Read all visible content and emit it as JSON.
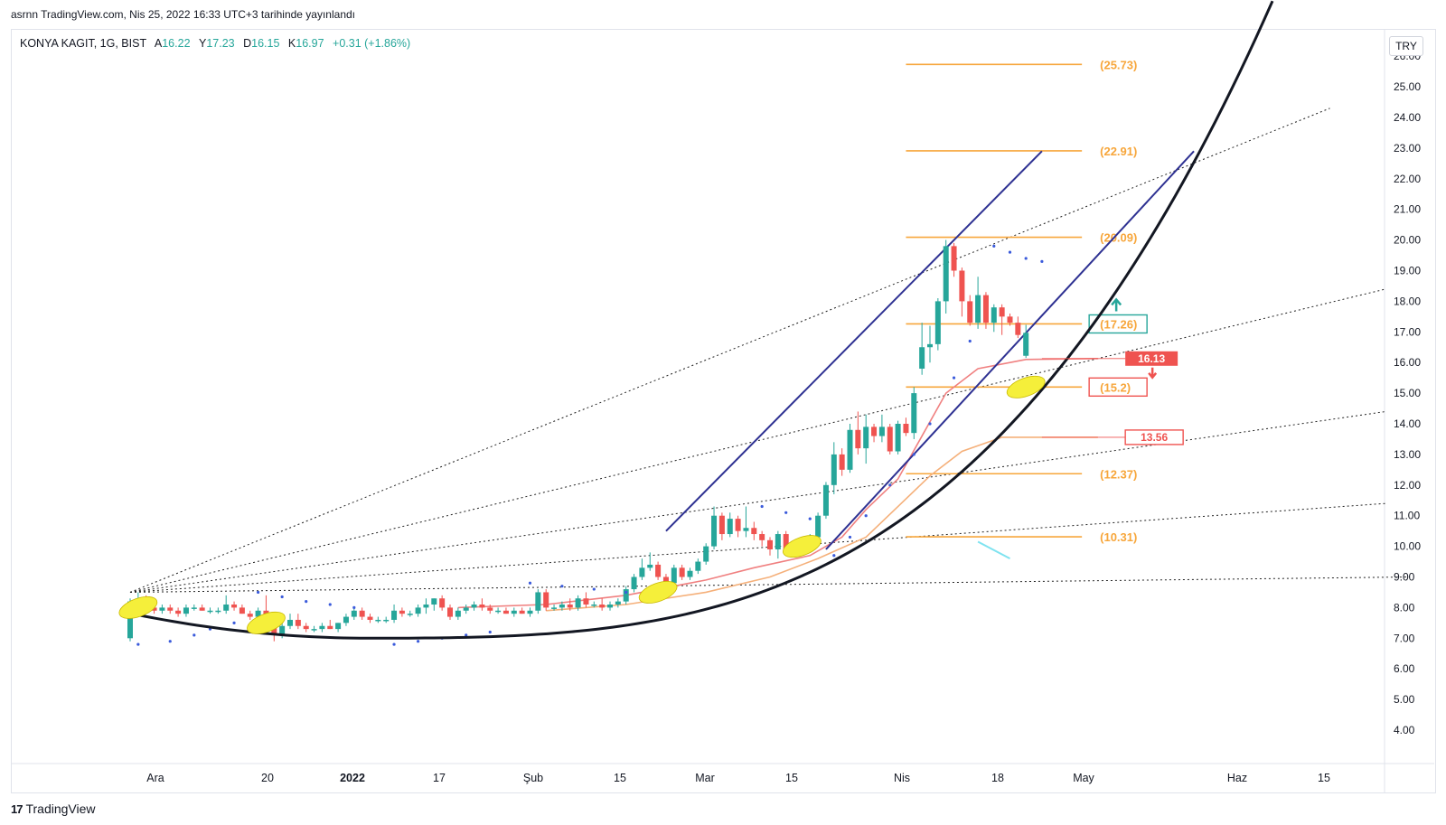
{
  "header": {
    "published_text": "asrnn TradingView.com, Nis 25, 2022 16:33 UTC+3 tarihinde yayınlandı"
  },
  "legend": {
    "symbol": "KONYA KAGIT, 1G, BIST",
    "open_label": "A",
    "open": "16.22",
    "high_label": "Y",
    "high": "17.23",
    "low_label": "D",
    "low": "16.15",
    "close_label": "K",
    "close": "16.97",
    "change": "+0.31 (+1.86%)"
  },
  "currency": "TRY",
  "brand": {
    "logo_icon": "tradingview-logo-icon",
    "text": "TradingView"
  },
  "colors": {
    "up": "#26a69a",
    "down": "#ef5350",
    "level": "#f7a63b",
    "channel": "#2e3192",
    "curve": "#131722",
    "psar": "#3b5bdb",
    "ma_fast": "#f08080",
    "ma_slow": "#f5b07a",
    "highlight": "#f5ef3a"
  },
  "chart_data": {
    "type": "candlestick",
    "ylim": [
      3.6,
      26.2
    ],
    "y_ticks": [
      "4.00",
      "5.00",
      "6.00",
      "7.00",
      "8.00",
      "9.00",
      "10.00",
      "11.00",
      "12.00",
      "13.00",
      "14.00",
      "15.00",
      "16.00",
      "17.00",
      "18.00",
      "19.00",
      "20.00",
      "21.00",
      "22.00",
      "23.00",
      "24.00",
      "25.00",
      "26.00"
    ],
    "x_ticks": [
      "Ara",
      "20",
      "2022",
      "17",
      "Şub",
      "15",
      "Mar",
      "15",
      "Nis",
      "18",
      "May",
      "Haz",
      "15"
    ],
    "fib_levels": [
      "(25.73)",
      "(22.91)",
      "(20.09)",
      "(17.26)",
      "(15.2)",
      "(12.37)",
      "(10.31)"
    ],
    "fib_values": [
      25.73,
      22.91,
      20.09,
      17.26,
      15.2,
      12.37,
      10.31
    ],
    "price_tags": [
      {
        "label": "16.13",
        "value": 16.13,
        "style": "filled"
      },
      {
        "label": "13.56",
        "value": 13.56,
        "style": "outline"
      }
    ],
    "candles": [
      [
        7.0,
        8.3,
        6.9,
        8.2
      ],
      [
        8.2,
        8.5,
        8.0,
        8.3
      ],
      [
        8.3,
        8.4,
        7.9,
        8.0
      ],
      [
        8.0,
        8.2,
        7.8,
        7.9
      ],
      [
        7.9,
        8.1,
        7.8,
        8.0
      ],
      [
        8.0,
        8.1,
        7.8,
        7.9
      ],
      [
        7.9,
        8.0,
        7.7,
        7.8
      ],
      [
        7.8,
        8.1,
        7.7,
        8.0
      ],
      [
        8.0,
        8.1,
        7.9,
        8.0
      ],
      [
        8.0,
        8.1,
        7.9,
        7.9
      ],
      [
        7.9,
        8.0,
        7.8,
        7.9
      ],
      [
        7.9,
        8.0,
        7.8,
        7.9
      ],
      [
        7.9,
        8.4,
        7.8,
        8.1
      ],
      [
        8.1,
        8.2,
        7.9,
        8.0
      ],
      [
        8.0,
        8.1,
        7.8,
        7.8
      ],
      [
        7.8,
        7.9,
        7.6,
        7.7
      ],
      [
        7.7,
        8.0,
        7.6,
        7.9
      ],
      [
        7.9,
        8.4,
        7.2,
        7.4
      ],
      [
        7.4,
        7.6,
        6.9,
        7.1
      ],
      [
        7.1,
        7.5,
        7.0,
        7.4
      ],
      [
        7.4,
        7.8,
        7.3,
        7.6
      ],
      [
        7.6,
        7.8,
        7.3,
        7.4
      ],
      [
        7.4,
        7.5,
        7.2,
        7.3
      ],
      [
        7.3,
        7.4,
        7.2,
        7.3
      ],
      [
        7.3,
        7.5,
        7.2,
        7.4
      ],
      [
        7.4,
        7.6,
        7.3,
        7.3
      ],
      [
        7.3,
        7.5,
        7.2,
        7.5
      ],
      [
        7.5,
        7.8,
        7.4,
        7.7
      ],
      [
        7.7,
        8.0,
        7.6,
        7.9
      ],
      [
        7.9,
        8.0,
        7.6,
        7.7
      ],
      [
        7.7,
        7.8,
        7.5,
        7.6
      ],
      [
        7.6,
        7.7,
        7.5,
        7.6
      ],
      [
        7.6,
        7.7,
        7.5,
        7.6
      ],
      [
        7.6,
        8.1,
        7.5,
        7.9
      ],
      [
        7.9,
        8.0,
        7.7,
        7.8
      ],
      [
        7.8,
        7.9,
        7.7,
        7.8
      ],
      [
        7.8,
        8.1,
        7.7,
        8.0
      ],
      [
        8.0,
        8.3,
        7.8,
        8.1
      ],
      [
        8.1,
        8.3,
        7.9,
        8.3
      ],
      [
        8.3,
        8.4,
        7.9,
        8.0
      ],
      [
        8.0,
        8.1,
        7.6,
        7.7
      ],
      [
        7.7,
        8.0,
        7.6,
        7.9
      ],
      [
        7.9,
        8.1,
        7.8,
        8.0
      ],
      [
        8.0,
        8.2,
        7.9,
        8.1
      ],
      [
        8.1,
        8.3,
        7.9,
        8.0
      ],
      [
        8.0,
        8.1,
        7.8,
        7.9
      ],
      [
        7.9,
        8.0,
        7.8,
        7.9
      ],
      [
        7.9,
        8.0,
        7.8,
        7.8
      ],
      [
        7.8,
        8.0,
        7.7,
        7.9
      ],
      [
        7.9,
        8.0,
        7.8,
        7.8
      ],
      [
        7.8,
        8.0,
        7.7,
        7.9
      ],
      [
        7.9,
        8.6,
        7.8,
        8.5
      ],
      [
        8.5,
        8.6,
        7.9,
        8.0
      ],
      [
        8.0,
        8.1,
        7.9,
        8.0
      ],
      [
        8.0,
        8.2,
        7.9,
        8.1
      ],
      [
        8.1,
        8.3,
        7.9,
        8.0
      ],
      [
        8.0,
        8.4,
        7.9,
        8.3
      ],
      [
        8.3,
        8.5,
        8.0,
        8.1
      ],
      [
        8.1,
        8.2,
        8.0,
        8.1
      ],
      [
        8.1,
        8.3,
        7.9,
        8.0
      ],
      [
        8.0,
        8.2,
        7.9,
        8.1
      ],
      [
        8.1,
        8.3,
        8.0,
        8.2
      ],
      [
        8.2,
        8.7,
        8.1,
        8.6
      ],
      [
        8.6,
        9.1,
        8.5,
        9.0
      ],
      [
        9.0,
        9.6,
        8.9,
        9.3
      ],
      [
        9.3,
        9.8,
        9.2,
        9.4
      ],
      [
        9.4,
        9.5,
        8.9,
        9.0
      ],
      [
        9.0,
        9.1,
        8.7,
        8.8
      ],
      [
        8.8,
        9.4,
        8.6,
        9.3
      ],
      [
        9.3,
        9.4,
        8.9,
        9.0
      ],
      [
        9.0,
        9.3,
        8.9,
        9.2
      ],
      [
        9.2,
        9.6,
        9.1,
        9.5
      ],
      [
        9.5,
        10.1,
        9.4,
        10.0
      ],
      [
        10.0,
        11.3,
        9.9,
        11.0
      ],
      [
        11.0,
        11.1,
        10.2,
        10.4
      ],
      [
        10.4,
        11.1,
        10.3,
        10.9
      ],
      [
        10.9,
        11.0,
        10.3,
        10.5
      ],
      [
        10.5,
        11.3,
        10.3,
        10.6
      ],
      [
        10.6,
        10.8,
        10.2,
        10.4
      ],
      [
        10.4,
        10.5,
        10.0,
        10.2
      ],
      [
        10.2,
        10.3,
        9.7,
        9.9
      ],
      [
        9.9,
        10.5,
        9.6,
        10.4
      ],
      [
        10.4,
        10.5,
        9.7,
        9.8
      ],
      [
        9.8,
        10.2,
        9.7,
        10.1
      ],
      [
        10.1,
        10.2,
        9.9,
        10.0
      ],
      [
        10.0,
        10.4,
        9.9,
        10.3
      ],
      [
        10.3,
        11.1,
        10.1,
        11.0
      ],
      [
        11.0,
        12.1,
        10.9,
        12.0
      ],
      [
        12.0,
        13.4,
        11.7,
        13.0
      ],
      [
        13.0,
        13.2,
        12.3,
        12.5
      ],
      [
        12.5,
        14.0,
        12.4,
        13.8
      ],
      [
        13.8,
        14.4,
        13.0,
        13.2
      ],
      [
        13.2,
        14.3,
        12.7,
        13.9
      ],
      [
        13.9,
        14.0,
        13.4,
        13.6
      ],
      [
        13.6,
        14.3,
        13.4,
        13.9
      ],
      [
        13.9,
        14.0,
        13.0,
        13.1
      ],
      [
        13.1,
        14.1,
        13.0,
        14.0
      ],
      [
        14.0,
        14.2,
        13.6,
        13.7
      ],
      [
        13.7,
        15.2,
        13.5,
        15.0
      ],
      [
        15.8,
        17.3,
        15.6,
        16.5
      ],
      [
        16.5,
        17.2,
        16.0,
        16.6
      ],
      [
        16.6,
        18.1,
        16.4,
        18.0
      ],
      [
        18.0,
        20.0,
        17.6,
        19.8
      ],
      [
        19.8,
        19.9,
        18.8,
        19.0
      ],
      [
        19.0,
        19.1,
        17.5,
        18.0
      ],
      [
        18.0,
        18.2,
        17.2,
        17.3
      ],
      [
        17.3,
        18.8,
        17.1,
        18.2
      ],
      [
        18.2,
        18.3,
        17.1,
        17.3
      ],
      [
        17.3,
        17.9,
        17.0,
        17.8
      ],
      [
        17.8,
        17.9,
        16.9,
        17.5
      ],
      [
        17.5,
        17.6,
        17.2,
        17.3
      ],
      [
        17.3,
        17.5,
        16.8,
        16.9
      ],
      [
        16.22,
        17.23,
        16.15,
        16.97
      ]
    ],
    "ma_fast": [
      [
        8.0,
        41
      ],
      [
        8.1,
        52
      ],
      [
        8.4,
        62
      ],
      [
        8.9,
        72
      ],
      [
        9.3,
        78
      ],
      [
        9.7,
        85
      ],
      [
        10.3,
        89
      ],
      [
        11.2,
        92
      ],
      [
        12.2,
        96
      ],
      [
        13.6,
        99
      ],
      [
        15.0,
        102
      ],
      [
        15.8,
        106
      ],
      [
        16.1,
        112
      ],
      [
        16.13,
        121
      ]
    ],
    "ma_slow": [
      [
        7.9,
        52
      ],
      [
        8.1,
        62
      ],
      [
        8.5,
        72
      ],
      [
        9.0,
        80
      ],
      [
        9.6,
        86
      ],
      [
        10.3,
        92
      ],
      [
        11.3,
        96
      ],
      [
        12.3,
        100
      ],
      [
        13.1,
        104
      ],
      [
        13.56,
        109
      ],
      [
        13.56,
        121
      ]
    ],
    "psar_marks": [
      [
        6.8,
        1
      ],
      [
        6.9,
        5
      ],
      [
        7.1,
        8
      ],
      [
        7.3,
        10
      ],
      [
        7.5,
        13
      ],
      [
        8.5,
        16
      ],
      [
        8.35,
        19
      ],
      [
        8.2,
        22
      ],
      [
        8.1,
        25
      ],
      [
        8.0,
        28
      ],
      [
        6.8,
        33
      ],
      [
        6.9,
        36
      ],
      [
        7.0,
        39
      ],
      [
        7.1,
        42
      ],
      [
        7.2,
        45
      ],
      [
        8.8,
        50
      ],
      [
        8.7,
        54
      ],
      [
        8.6,
        58
      ],
      [
        8.5,
        62
      ],
      [
        8.4,
        66
      ],
      [
        11.3,
        79
      ],
      [
        11.1,
        82
      ],
      [
        10.9,
        85
      ],
      [
        9.7,
        88
      ],
      [
        10.3,
        90
      ],
      [
        11.0,
        92
      ],
      [
        12.0,
        95
      ],
      [
        13.0,
        98
      ],
      [
        14.0,
        100
      ],
      [
        15.5,
        103
      ],
      [
        16.7,
        105
      ],
      [
        19.8,
        108
      ],
      [
        19.6,
        110
      ],
      [
        19.4,
        112
      ],
      [
        19.3,
        114
      ]
    ],
    "channel": [
      [
        [
          10.5,
          67
        ],
        [
          22.9,
          114
        ]
      ],
      [
        [
          9.9,
          87
        ],
        [
          22.9,
          133
        ]
      ]
    ],
    "curve_note": "parabolic support curve",
    "highlights": [
      [
        8.0,
        1
      ],
      [
        7.5,
        17
      ],
      [
        8.5,
        66
      ],
      [
        10.0,
        84
      ],
      [
        15.2,
        112
      ]
    ],
    "trend_rays": [
      [
        8.5,
        0
      ],
      [
        24.3,
        150
      ],
      [
        18.4,
        157
      ],
      [
        14.4,
        157
      ],
      [
        11.4,
        157
      ],
      [
        9.0,
        160
      ]
    ]
  }
}
